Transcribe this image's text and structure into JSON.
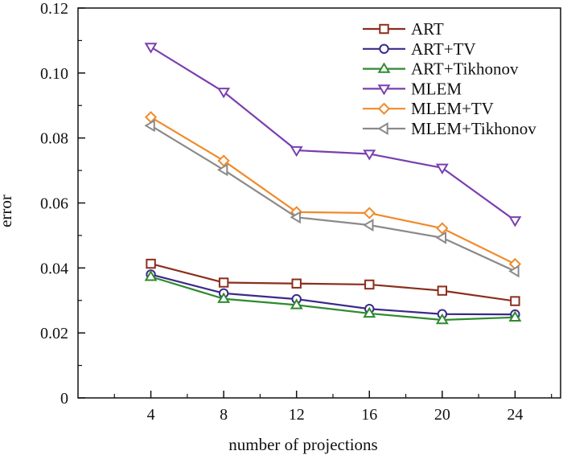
{
  "chart_data": {
    "type": "line",
    "title": "",
    "xlabel": "number of projections",
    "ylabel": "error",
    "x": [
      4,
      8,
      12,
      16,
      20,
      24
    ],
    "xlim": [
      0,
      26.5
    ],
    "ylim": [
      0,
      0.12
    ],
    "xticks": [
      4,
      8,
      12,
      16,
      20,
      24
    ],
    "yticks": [
      0,
      0.02,
      0.04,
      0.06,
      0.08,
      0.1,
      0.12
    ],
    "ytick_labels": [
      "0",
      "0.02",
      "0.04",
      "0.06",
      "0.08",
      "0.10",
      "0.12"
    ],
    "grid": false,
    "legend_position": "top-right",
    "series": [
      {
        "name": "ART",
        "color": "#8b2e1e",
        "marker": "square",
        "values": [
          0.0413,
          0.0355,
          0.0352,
          0.0349,
          0.033,
          0.0298
        ]
      },
      {
        "name": "ART+TV",
        "color": "#3b2a8a",
        "marker": "circle",
        "values": [
          0.038,
          0.0322,
          0.0304,
          0.0274,
          0.0258,
          0.0257
        ]
      },
      {
        "name": "ART+Tikhonov",
        "color": "#2e8a2e",
        "marker": "triangle-up",
        "values": [
          0.0373,
          0.0305,
          0.0286,
          0.026,
          0.024,
          0.0248
        ]
      },
      {
        "name": "MLEM",
        "color": "#7a3fb0",
        "marker": "triangle-down",
        "values": [
          0.108,
          0.0942,
          0.0762,
          0.0751,
          0.0708,
          0.0546
        ]
      },
      {
        "name": "MLEM+TV",
        "color": "#f08a2a",
        "marker": "diamond",
        "values": [
          0.0864,
          0.073,
          0.0572,
          0.0569,
          0.0522,
          0.0412
        ]
      },
      {
        "name": "MLEM+Tikhonov",
        "color": "#8a8a8a",
        "marker": "triangle-left",
        "values": [
          0.0838,
          0.0702,
          0.0556,
          0.0532,
          0.0493,
          0.039
        ]
      }
    ]
  }
}
